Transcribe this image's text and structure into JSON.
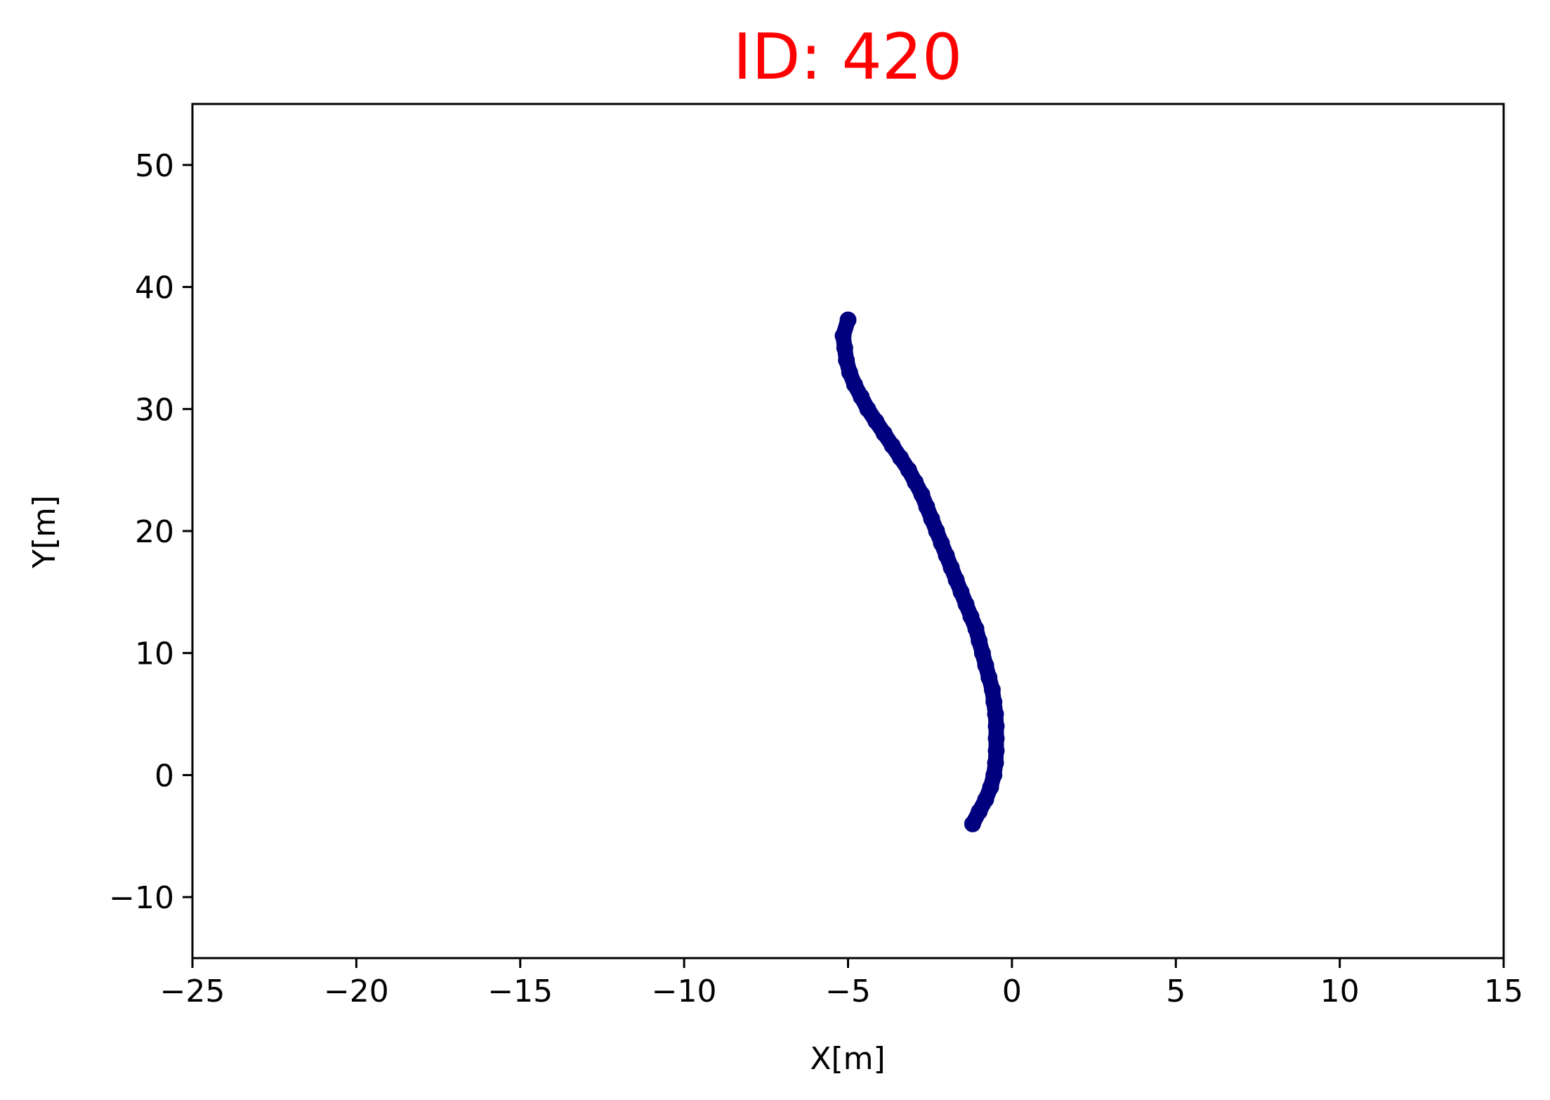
{
  "chart_data": {
    "type": "scatter",
    "title": "ID: 420",
    "title_color": "#ff0000",
    "xlabel": "X[m]",
    "ylabel": "Y[m]",
    "xlim": [
      -25,
      15
    ],
    "ylim": [
      -15,
      55
    ],
    "x_ticks": [
      -25,
      -20,
      -15,
      -10,
      -5,
      0,
      5,
      10,
      15
    ],
    "x_tick_labels": [
      "−25",
      "−20",
      "−15",
      "−10",
      "−5",
      "0",
      "5",
      "10",
      "15"
    ],
    "y_ticks": [
      -10,
      0,
      10,
      20,
      30,
      40,
      50
    ],
    "y_tick_labels": [
      "−10",
      "0",
      "10",
      "20",
      "30",
      "40",
      "50"
    ],
    "grid": false,
    "series": [
      {
        "color": "#00007f",
        "marker": "circle",
        "points": [
          [
            -1.2,
            -4.0
          ],
          [
            -1.0,
            -3.0
          ],
          [
            -0.8,
            -2.0
          ],
          [
            -0.65,
            -1.0
          ],
          [
            -0.55,
            0.0
          ],
          [
            -0.5,
            1.0
          ],
          [
            -0.48,
            2.0
          ],
          [
            -0.48,
            3.0
          ],
          [
            -0.48,
            4.0
          ],
          [
            -0.5,
            5.0
          ],
          [
            -0.55,
            6.0
          ],
          [
            -0.6,
            7.0
          ],
          [
            -0.7,
            8.0
          ],
          [
            -0.8,
            9.0
          ],
          [
            -0.9,
            10.0
          ],
          [
            -1.0,
            11.0
          ],
          [
            -1.1,
            12.0
          ],
          [
            -1.25,
            13.0
          ],
          [
            -1.4,
            14.0
          ],
          [
            -1.55,
            15.0
          ],
          [
            -1.7,
            16.0
          ],
          [
            -1.85,
            17.0
          ],
          [
            -2.0,
            18.0
          ],
          [
            -2.15,
            19.0
          ],
          [
            -2.3,
            20.0
          ],
          [
            -2.45,
            21.0
          ],
          [
            -2.6,
            22.0
          ],
          [
            -2.75,
            23.0
          ],
          [
            -2.95,
            24.0
          ],
          [
            -3.15,
            25.0
          ],
          [
            -3.4,
            26.0
          ],
          [
            -3.65,
            27.0
          ],
          [
            -3.9,
            28.0
          ],
          [
            -4.15,
            29.0
          ],
          [
            -4.4,
            30.0
          ],
          [
            -4.6,
            31.0
          ],
          [
            -4.8,
            32.0
          ],
          [
            -4.95,
            33.0
          ],
          [
            -5.05,
            34.0
          ],
          [
            -5.1,
            35.0
          ],
          [
            -5.15,
            36.0
          ],
          [
            -5.0,
            37.3
          ]
        ]
      }
    ]
  }
}
